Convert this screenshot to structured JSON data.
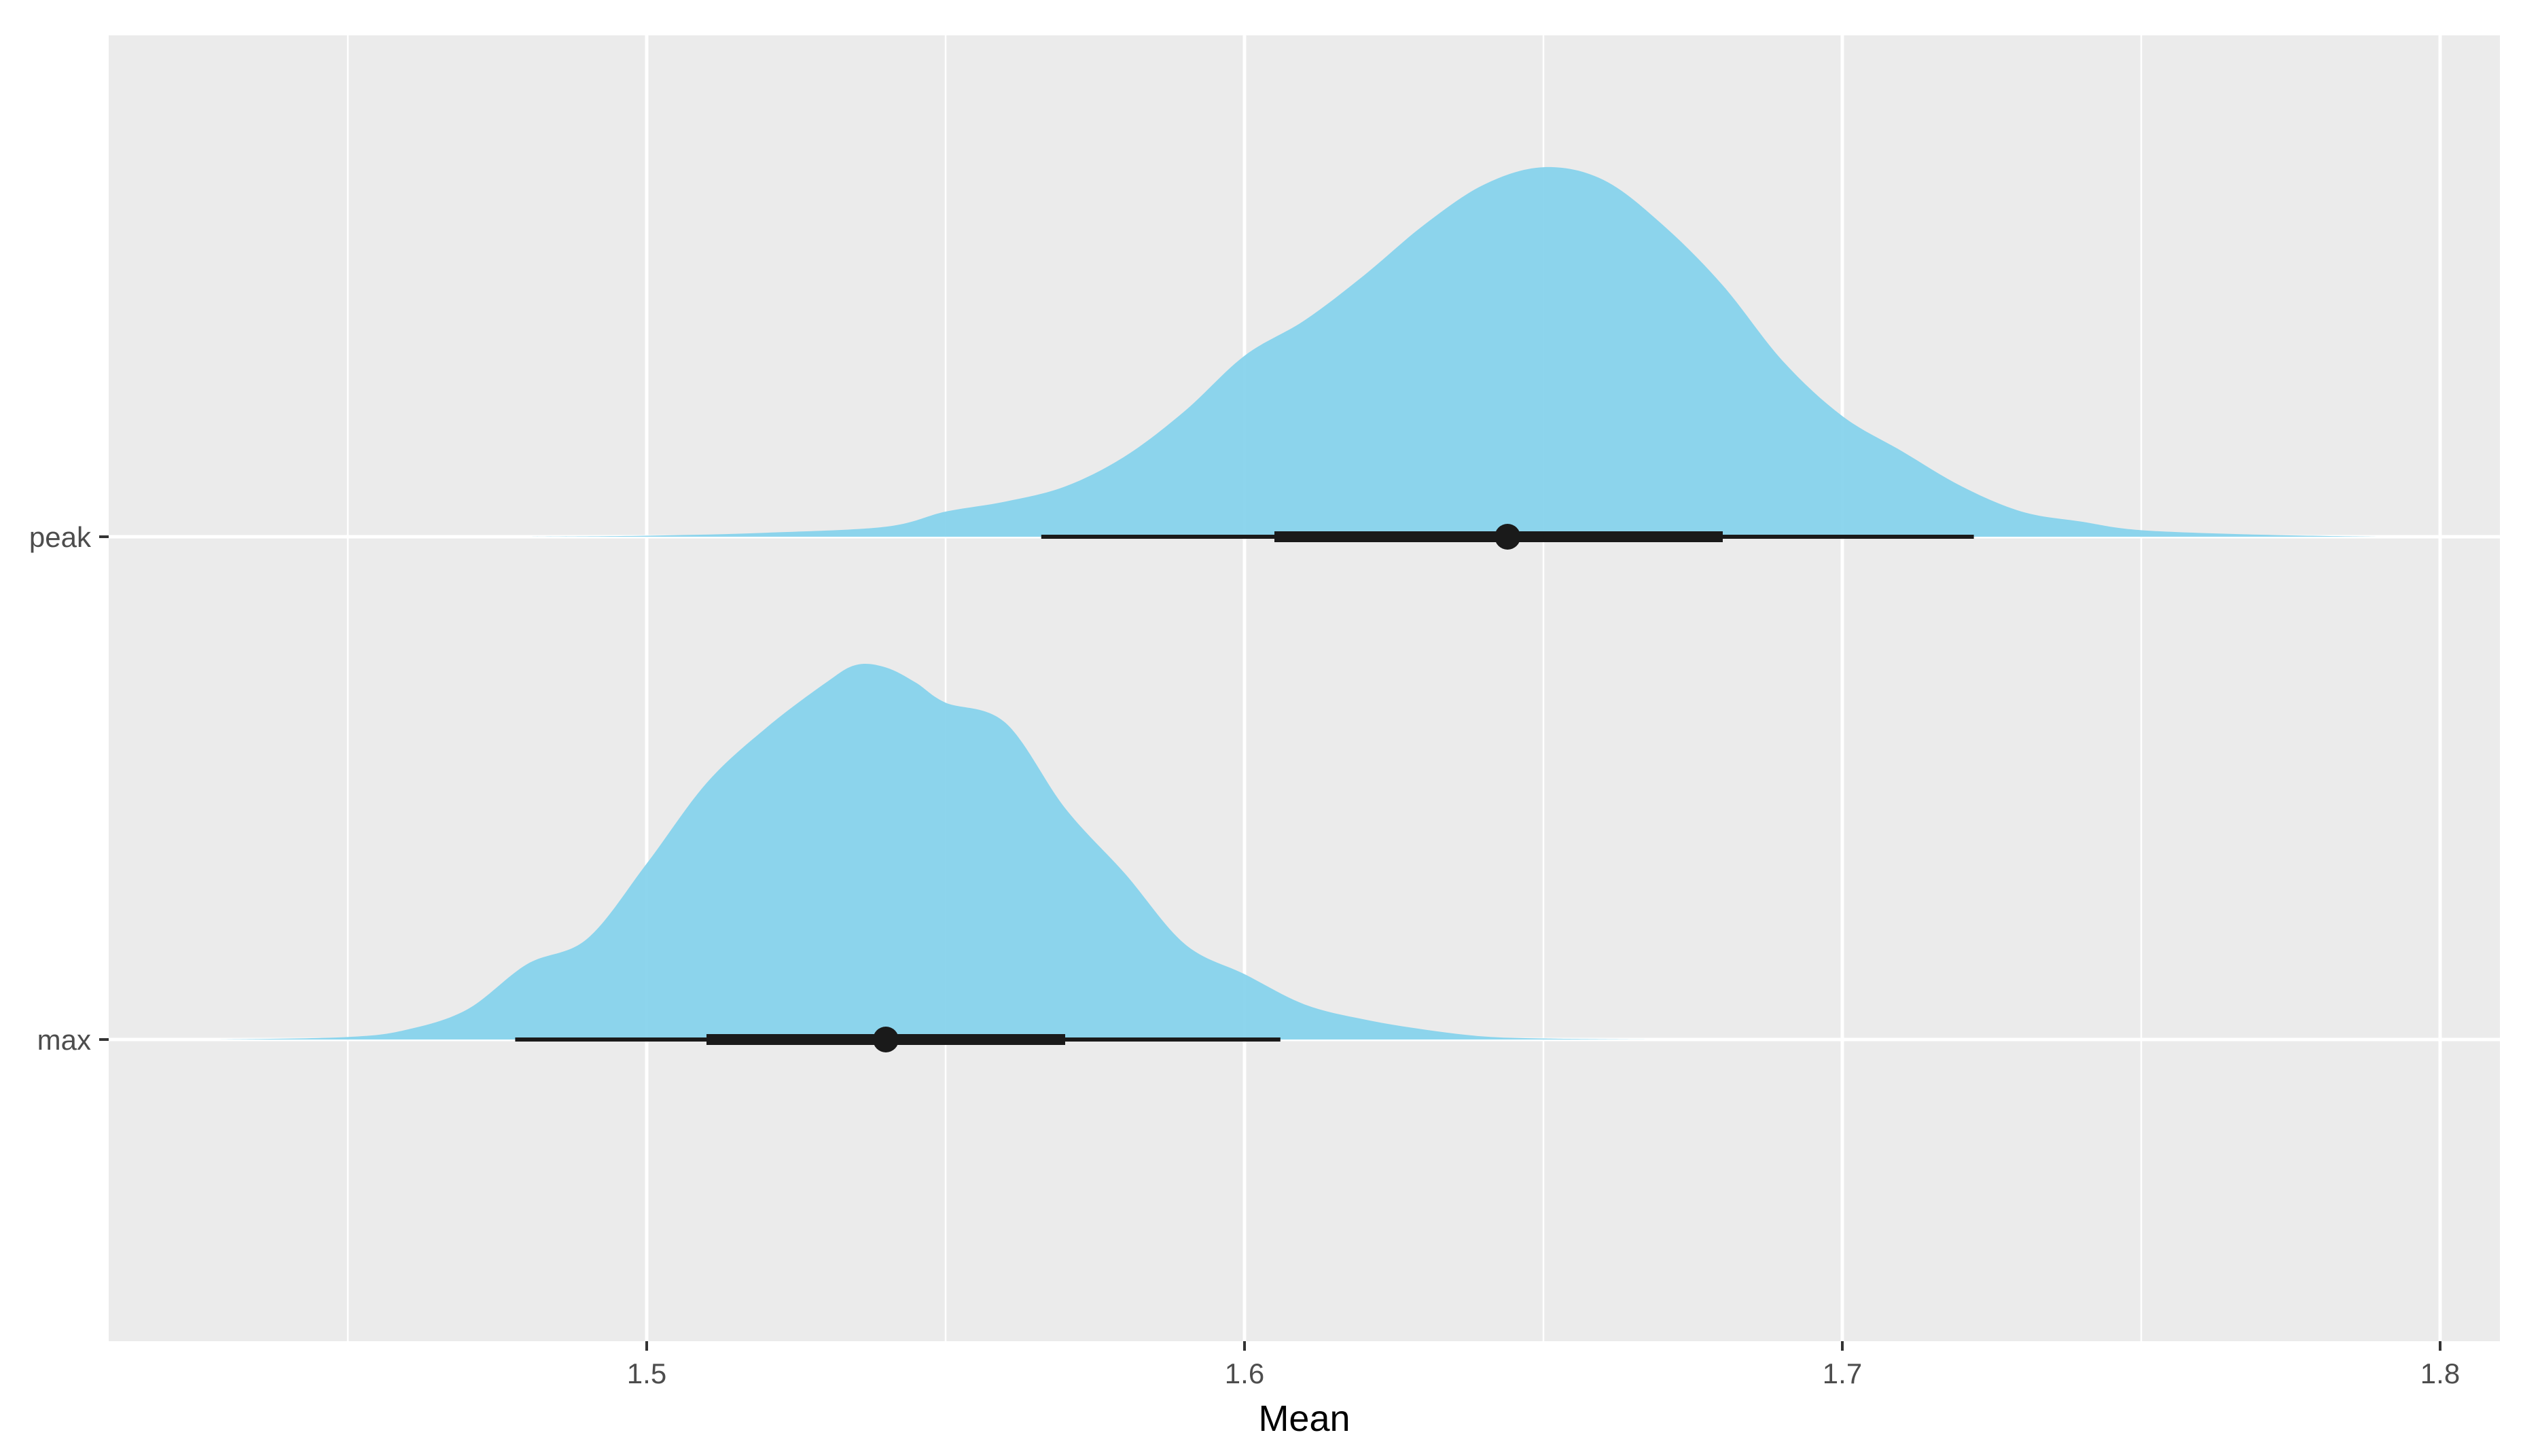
{
  "chart_data": {
    "type": "area",
    "title": "",
    "xlabel": "Mean",
    "ylabel": "",
    "xlim": [
      1.41,
      1.81
    ],
    "x_ticks": [
      {
        "value": 1.5,
        "label": "1.5"
      },
      {
        "value": 1.6,
        "label": "1.6"
      },
      {
        "value": 1.7,
        "label": "1.7"
      },
      {
        "value": 1.8,
        "label": "1.8"
      }
    ],
    "x_minor_ticks": [
      1.45,
      1.55,
      1.65,
      1.75
    ],
    "grid": true,
    "legend": "none",
    "colors": {
      "panel_background": "#ebebeb",
      "grid": "#ffffff",
      "density_fill": "#87d3ec",
      "interval": "#1a1a1a",
      "axis_text": "#4d4d4d"
    },
    "series": [
      {
        "name": "peak",
        "point_estimate": 1.644,
        "inner_interval": [
          1.605,
          1.68
        ],
        "outer_interval": [
          1.566,
          1.722
        ],
        "density": [
          [
            1.48,
            0.0
          ],
          [
            1.5,
            0.002
          ],
          [
            1.52,
            0.008
          ],
          [
            1.54,
            0.02
          ],
          [
            1.55,
            0.05
          ],
          [
            1.56,
            0.07
          ],
          [
            1.57,
            0.1
          ],
          [
            1.58,
            0.16
          ],
          [
            1.59,
            0.25
          ],
          [
            1.6,
            0.36
          ],
          [
            1.61,
            0.43
          ],
          [
            1.62,
            0.52
          ],
          [
            1.63,
            0.62
          ],
          [
            1.64,
            0.7
          ],
          [
            1.65,
            0.735
          ],
          [
            1.66,
            0.71
          ],
          [
            1.67,
            0.62
          ],
          [
            1.68,
            0.5
          ],
          [
            1.69,
            0.35
          ],
          [
            1.7,
            0.24
          ],
          [
            1.71,
            0.17
          ],
          [
            1.72,
            0.1
          ],
          [
            1.73,
            0.05
          ],
          [
            1.74,
            0.03
          ],
          [
            1.75,
            0.013
          ],
          [
            1.77,
            0.004
          ],
          [
            1.79,
            0.0
          ]
        ]
      },
      {
        "name": "max",
        "point_estimate": 1.54,
        "inner_interval": [
          1.51,
          1.57
        ],
        "outer_interval": [
          1.478,
          1.606
        ],
        "density": [
          [
            1.428,
            0.0
          ],
          [
            1.45,
            0.005
          ],
          [
            1.46,
            0.02
          ],
          [
            1.47,
            0.06
          ],
          [
            1.48,
            0.15
          ],
          [
            1.49,
            0.2
          ],
          [
            1.5,
            0.35
          ],
          [
            1.51,
            0.51
          ],
          [
            1.52,
            0.62
          ],
          [
            1.53,
            0.71
          ],
          [
            1.535,
            0.745
          ],
          [
            1.54,
            0.74
          ],
          [
            1.545,
            0.71
          ],
          [
            1.55,
            0.67
          ],
          [
            1.56,
            0.63
          ],
          [
            1.57,
            0.46
          ],
          [
            1.58,
            0.33
          ],
          [
            1.59,
            0.19
          ],
          [
            1.6,
            0.13
          ],
          [
            1.61,
            0.07
          ],
          [
            1.62,
            0.04
          ],
          [
            1.63,
            0.02
          ],
          [
            1.64,
            0.006
          ],
          [
            1.65,
            0.002
          ],
          [
            1.667,
            0.0
          ]
        ]
      }
    ]
  }
}
